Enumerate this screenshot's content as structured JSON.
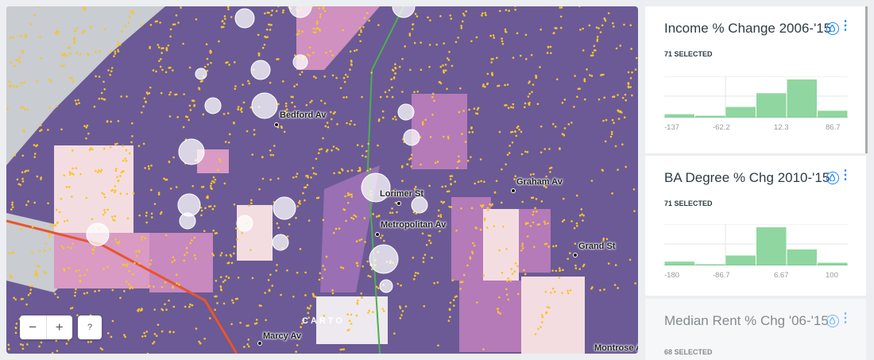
{
  "map": {
    "labels": [
      "Bedford Av",
      "Lorimer St",
      "Graham Av",
      "Metropolitan Av",
      "Grand St",
      "Marcy Av",
      "Montrose Av"
    ],
    "zoom_out": "−",
    "zoom_in": "+",
    "help": "?",
    "attribution_logo": "CARTO",
    "colors": {
      "base": "#6b5a95",
      "mid": "#b57ab8",
      "light": "#f4dde0",
      "points": "#f7c52b",
      "subway": "#e8552c"
    }
  },
  "widgets": [
    {
      "title": "Income % Change 2006-'15",
      "selected": "71 SELECTED",
      "icon": "drop-icon",
      "ticks": [
        "-137",
        "-62.2",
        "12.3",
        "86.7"
      ],
      "bars": [
        0.09,
        0.05,
        0.28,
        0.64,
        1.0,
        0.18
      ]
    },
    {
      "title": "BA Degree % Chg 2010-'15",
      "selected": "71 SELECTED",
      "icon": "drop-icon",
      "ticks": [
        "-180",
        "-86.7",
        "6.67",
        "100"
      ],
      "bars": [
        0.1,
        0.03,
        0.26,
        1.0,
        0.42,
        0.07
      ]
    },
    {
      "title": "Median Rent % Chg '06-'15",
      "selected": "68 SELECTED",
      "icon": "drop-icon"
    }
  ],
  "colors": {
    "bar": "#8fd6a0",
    "accent": "#1785fb"
  }
}
